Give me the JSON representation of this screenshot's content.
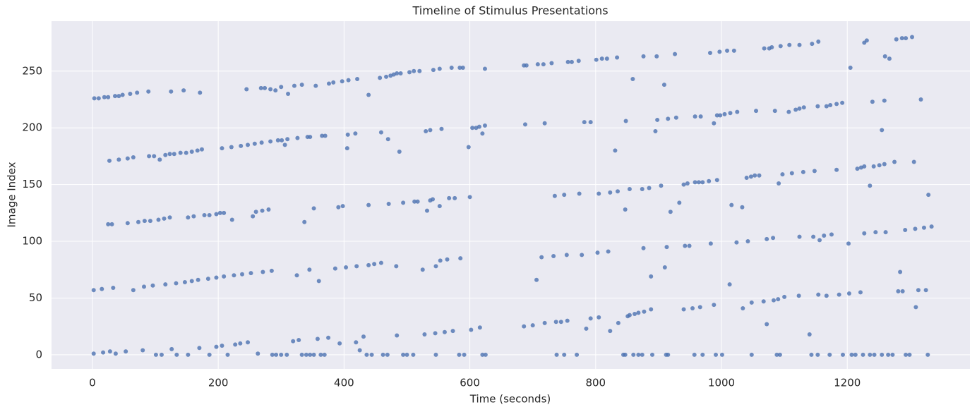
{
  "chart_data": {
    "type": "scatter",
    "title": "Timeline of Stimulus Presentations",
    "xlabel": "Time (seconds)",
    "ylabel": "Image Index",
    "color": "#4c72b0",
    "grid": true,
    "xlim": [
      -65,
      1395
    ],
    "ylim": [
      -12.5,
      294
    ],
    "xticks": [
      0,
      200,
      400,
      600,
      800,
      1000,
      1200
    ],
    "yticks": [
      0,
      50,
      100,
      150,
      200,
      250
    ],
    "x": [
      3,
      10,
      19,
      25,
      36,
      42,
      48,
      60,
      71,
      89,
      125,
      145,
      171,
      245,
      268,
      274,
      283,
      291,
      300,
      311,
      321,
      333,
      355,
      376,
      383,
      397,
      407,
      421,
      439,
      457,
      467,
      474,
      479,
      484,
      490,
      504,
      511,
      520,
      542,
      552,
      571,
      584,
      589,
      624,
      686,
      690,
      708,
      717,
      730,
      756,
      762,
      773,
      801,
      810,
      818,
      834,
      859,
      876,
      897,
      909,
      926,
      982,
      997,
      1009,
      1020,
      1068,
      1076,
      1080,
      1094,
      1108,
      1124,
      1144,
      1154,
      1205,
      1227,
      1231,
      1260,
      1267,
      1278,
      1287,
      1293,
      1303,
      27,
      42,
      56,
      65,
      90,
      98,
      107,
      116,
      123,
      130,
      140,
      149,
      158,
      167,
      174,
      206,
      221,
      236,
      247,
      258,
      269,
      283,
      295,
      301,
      306,
      310,
      326,
      342,
      346,
      365,
      370,
      405,
      406,
      418,
      459,
      470,
      488,
      530,
      537,
      555,
      598,
      604,
      610,
      615,
      620,
      624,
      688,
      719,
      782,
      792,
      831,
      848,
      895,
      898,
      915,
      928,
      958,
      967,
      988,
      993,
      998,
      1005,
      1014,
      1025,
      1055,
      1085,
      1107,
      1118,
      1124,
      1131,
      1153,
      1167,
      1173,
      1183,
      1192,
      1240,
      1255,
      1259,
      1317,
      25,
      31,
      56,
      73,
      83,
      92,
      105,
      114,
      123,
      152,
      161,
      178,
      186,
      197,
      203,
      209,
      222,
      255,
      260,
      270,
      280,
      337,
      352,
      391,
      398,
      439,
      471,
      494,
      512,
      517,
      532,
      537,
      541,
      552,
      567,
      576,
      600,
      735,
      750,
      774,
      805,
      823,
      835,
      847,
      854,
      874,
      885,
      904,
      919,
      933,
      940,
      946,
      958,
      964,
      970,
      980,
      993,
      1016,
      1033,
      1040,
      1047,
      1053,
      1060,
      1091,
      1097,
      1112,
      1130,
      1148,
      1183,
      1216,
      1222,
      1227,
      1236,
      1242,
      1251,
      1259,
      1275,
      1306,
      1329,
      2,
      15,
      33,
      65,
      82,
      96,
      116,
      133,
      147,
      158,
      168,
      184,
      197,
      209,
      225,
      238,
      252,
      271,
      285,
      325,
      345,
      360,
      386,
      403,
      420,
      439,
      448,
      459,
      483,
      525,
      546,
      553,
      564,
      585,
      706,
      714,
      733,
      754,
      778,
      803,
      820,
      876,
      888,
      910,
      913,
      942,
      949,
      983,
      1013,
      1024,
      1042,
      1072,
      1082,
      1124,
      1146,
      1156,
      1163,
      1175,
      1202,
      1227,
      1245,
      1261,
      1284,
      1292,
      1308,
      1322,
      1334,
      2,
      17,
      28,
      37,
      53,
      80,
      101,
      110,
      126,
      134,
      152,
      170,
      186,
      197,
      206,
      215,
      227,
      235,
      247,
      263,
      286,
      292,
      300,
      309,
      319,
      328,
      333,
      340,
      346,
      352,
      358,
      363,
      369,
      375,
      393,
      419,
      425,
      431,
      436,
      444,
      462,
      469,
      484,
      494,
      500,
      510,
      528,
      545,
      546,
      560,
      573,
      583,
      591,
      602,
      616,
      620,
      625,
      686,
      700,
      719,
      737,
      745,
      755,
      785,
      792,
      805,
      823,
      836,
      847,
      851,
      854,
      862,
      868,
      877,
      888,
      915,
      940,
      954,
      966,
      988,
      1001,
      1034,
      1048,
      1067,
      1072,
      1083,
      1090,
      1100,
      1123,
      1140,
      1154,
      1167,
      1187,
      1203,
      1213,
      1221,
      1255,
      1281,
      1288,
      1309,
      1313,
      1325,
      844,
      860,
      868,
      874,
      890,
      912,
      957,
      970,
      991,
      1048,
      1088,
      1093,
      1143,
      1153,
      1172,
      1193,
      1207,
      1225,
      1236,
      1243,
      1265,
      1272,
      1293,
      1299,
      1328,
      738,
      750,
      770
    ],
    "values": [
      226,
      226,
      227,
      227,
      228,
      228,
      229,
      230,
      231,
      232,
      232,
      233,
      231,
      234,
      235,
      235,
      234,
      233,
      236,
      230,
      237,
      238,
      237,
      239,
      240,
      241,
      242,
      243,
      229,
      244,
      245,
      246,
      247,
      248,
      248,
      249,
      250,
      250,
      251,
      252,
      253,
      253,
      253,
      252,
      255,
      255,
      256,
      256,
      257,
      258,
      258,
      259,
      260,
      261,
      261,
      262,
      243,
      263,
      263,
      238,
      265,
      266,
      267,
      268,
      268,
      270,
      270,
      271,
      272,
      273,
      273,
      274,
      276,
      253,
      275,
      277,
      263,
      261,
      278,
      279,
      279,
      280,
      171,
      172,
      173,
      174,
      175,
      175,
      172,
      176,
      177,
      177,
      178,
      178,
      179,
      180,
      181,
      182,
      183,
      184,
      185,
      186,
      187,
      188,
      189,
      189,
      185,
      190,
      191,
      192,
      192,
      193,
      193,
      182,
      194,
      195,
      196,
      190,
      179,
      197,
      198,
      199,
      183,
      200,
      200,
      201,
      195,
      202,
      203,
      204,
      205,
      205,
      180,
      206,
      197,
      207,
      208,
      209,
      210,
      210,
      204,
      211,
      211,
      212,
      213,
      214,
      215,
      215,
      214,
      216,
      217,
      218,
      219,
      219,
      220,
      221,
      222,
      223,
      198,
      224,
      225,
      115,
      115,
      116,
      117,
      118,
      118,
      119,
      120,
      121,
      121,
      122,
      123,
      123,
      124,
      125,
      125,
      119,
      122,
      126,
      127,
      128,
      117,
      129,
      130,
      131,
      132,
      133,
      134,
      135,
      135,
      127,
      136,
      137,
      131,
      138,
      138,
      139,
      140,
      141,
      142,
      142,
      143,
      144,
      128,
      146,
      146,
      147,
      149,
      126,
      134,
      150,
      151,
      152,
      152,
      152,
      153,
      154,
      132,
      130,
      156,
      157,
      158,
      158,
      151,
      159,
      160,
      161,
      162,
      163,
      164,
      165,
      166,
      149,
      166,
      167,
      168,
      170,
      170,
      141,
      57,
      58,
      59,
      57,
      60,
      61,
      62,
      63,
      64,
      65,
      66,
      67,
      68,
      69,
      70,
      71,
      72,
      73,
      74,
      70,
      75,
      65,
      76,
      77,
      78,
      79,
      80,
      81,
      78,
      75,
      78,
      83,
      84,
      85,
      66,
      86,
      87,
      88,
      88,
      90,
      91,
      94,
      69,
      77,
      95,
      96,
      96,
      98,
      62,
      99,
      100,
      102,
      103,
      104,
      104,
      101,
      105,
      106,
      98,
      107,
      108,
      108,
      73,
      110,
      111,
      112,
      113,
      1,
      2,
      3,
      1,
      3,
      4,
      0,
      0,
      5,
      0,
      0,
      6,
      0,
      7,
      8,
      0,
      9,
      10,
      11,
      1,
      0,
      0,
      0,
      0,
      12,
      13,
      0,
      0,
      0,
      0,
      14,
      0,
      0,
      15,
      10,
      11,
      4,
      16,
      0,
      0,
      0,
      0,
      17,
      0,
      0,
      0,
      18,
      19,
      0,
      20,
      21,
      0,
      0,
      22,
      24,
      0,
      0,
      25,
      26,
      28,
      29,
      29,
      30,
      23,
      32,
      33,
      21,
      28,
      0,
      34,
      35,
      36,
      37,
      38,
      40,
      0,
      40,
      41,
      42,
      44,
      0,
      41,
      46,
      47,
      27,
      48,
      49,
      51,
      52,
      18,
      53,
      52,
      53,
      54,
      0,
      55,
      0,
      56,
      56,
      42,
      57,
      57,
      0,
      0,
      0,
      0,
      0,
      0,
      0,
      0,
      0,
      0,
      0,
      0,
      0,
      0,
      0,
      0,
      0,
      0,
      0,
      0,
      0,
      0,
      0,
      0,
      0,
      0,
      0,
      0
    ]
  }
}
